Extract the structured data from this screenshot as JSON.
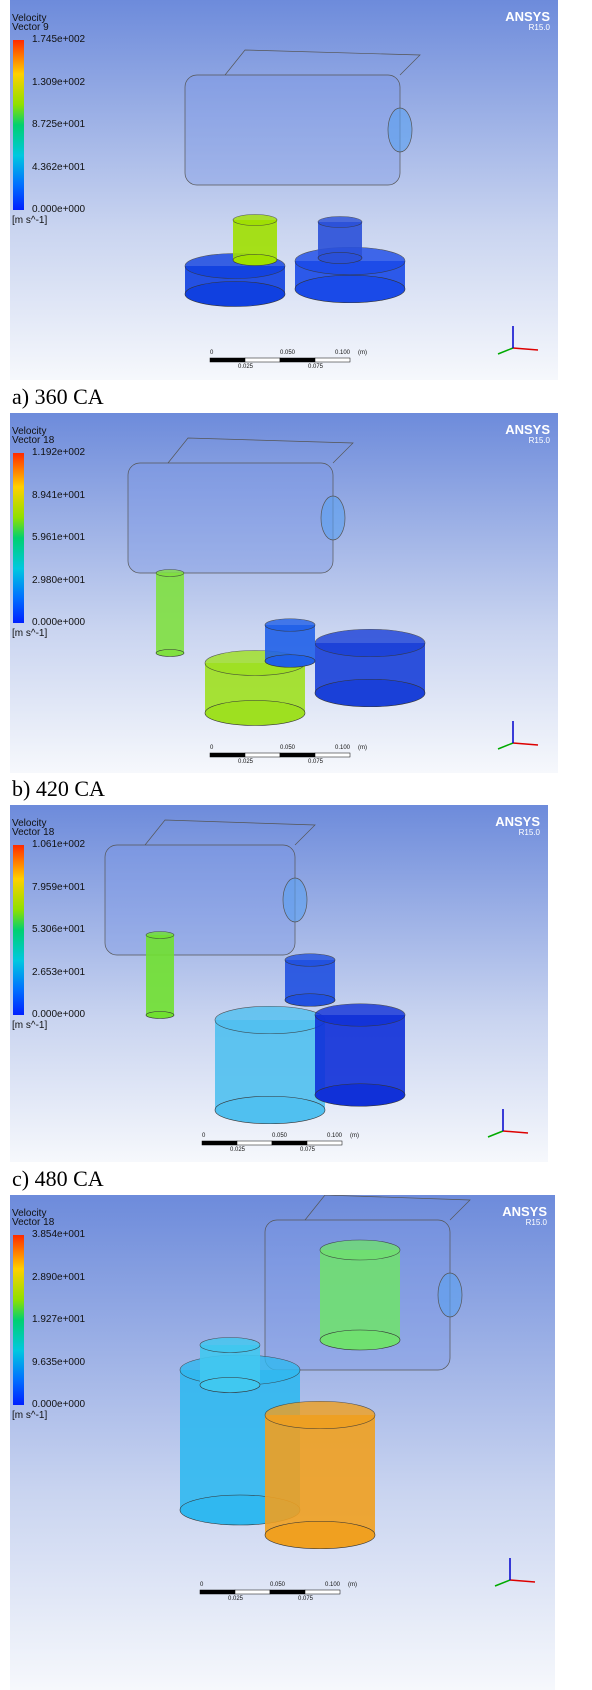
{
  "panels": [
    {
      "title": "Velocity",
      "subtitle": "Vector 9",
      "legend": [
        "1.745e+002",
        "1.309e+002",
        "8.725e+001",
        "4.362e+001",
        "0.000e+000"
      ],
      "unit": "[m s^-1]",
      "brand": "ANSYS",
      "version": "R15.0",
      "scale_top": [
        "0",
        "0.050",
        "0.100",
        "(m)"
      ],
      "scale_bottom": [
        "0.025",
        "0.075"
      ],
      "caption": "a) 360 CA"
    },
    {
      "title": "Velocity",
      "subtitle": "Vector 18",
      "legend": [
        "1.192e+002",
        "8.941e+001",
        "5.961e+001",
        "2.980e+001",
        "0.000e+000"
      ],
      "unit": "[m s^-1]",
      "brand": "ANSYS",
      "version": "R15.0",
      "scale_top": [
        "0",
        "0.050",
        "0.100",
        "(m)"
      ],
      "scale_bottom": [
        "0.025",
        "0.075"
      ],
      "caption": "b) 420 CA"
    },
    {
      "title": "Velocity",
      "subtitle": "Vector 18",
      "legend": [
        "1.061e+002",
        "7.959e+001",
        "5.306e+001",
        "2.653e+001",
        "0.000e+000"
      ],
      "unit": "[m s^-1]",
      "brand": "ANSYS",
      "version": "R15.0",
      "scale_top": [
        "0",
        "0.050",
        "0.100",
        "(m)"
      ],
      "scale_bottom": [
        "0.025",
        "0.075"
      ],
      "caption": "c) 480 CA"
    },
    {
      "title": "Velocity",
      "subtitle": "Vector 18",
      "legend": [
        "3.854e+001",
        "2.890e+001",
        "1.927e+001",
        "9.635e+000",
        "0.000e+000"
      ],
      "unit": "[m s^-1]",
      "brand": "ANSYS",
      "version": "R15.0",
      "scale_top": [
        "0",
        "0.050",
        "0.100",
        "(m)"
      ],
      "scale_bottom": [
        "0.025",
        "0.075"
      ]
    }
  ]
}
